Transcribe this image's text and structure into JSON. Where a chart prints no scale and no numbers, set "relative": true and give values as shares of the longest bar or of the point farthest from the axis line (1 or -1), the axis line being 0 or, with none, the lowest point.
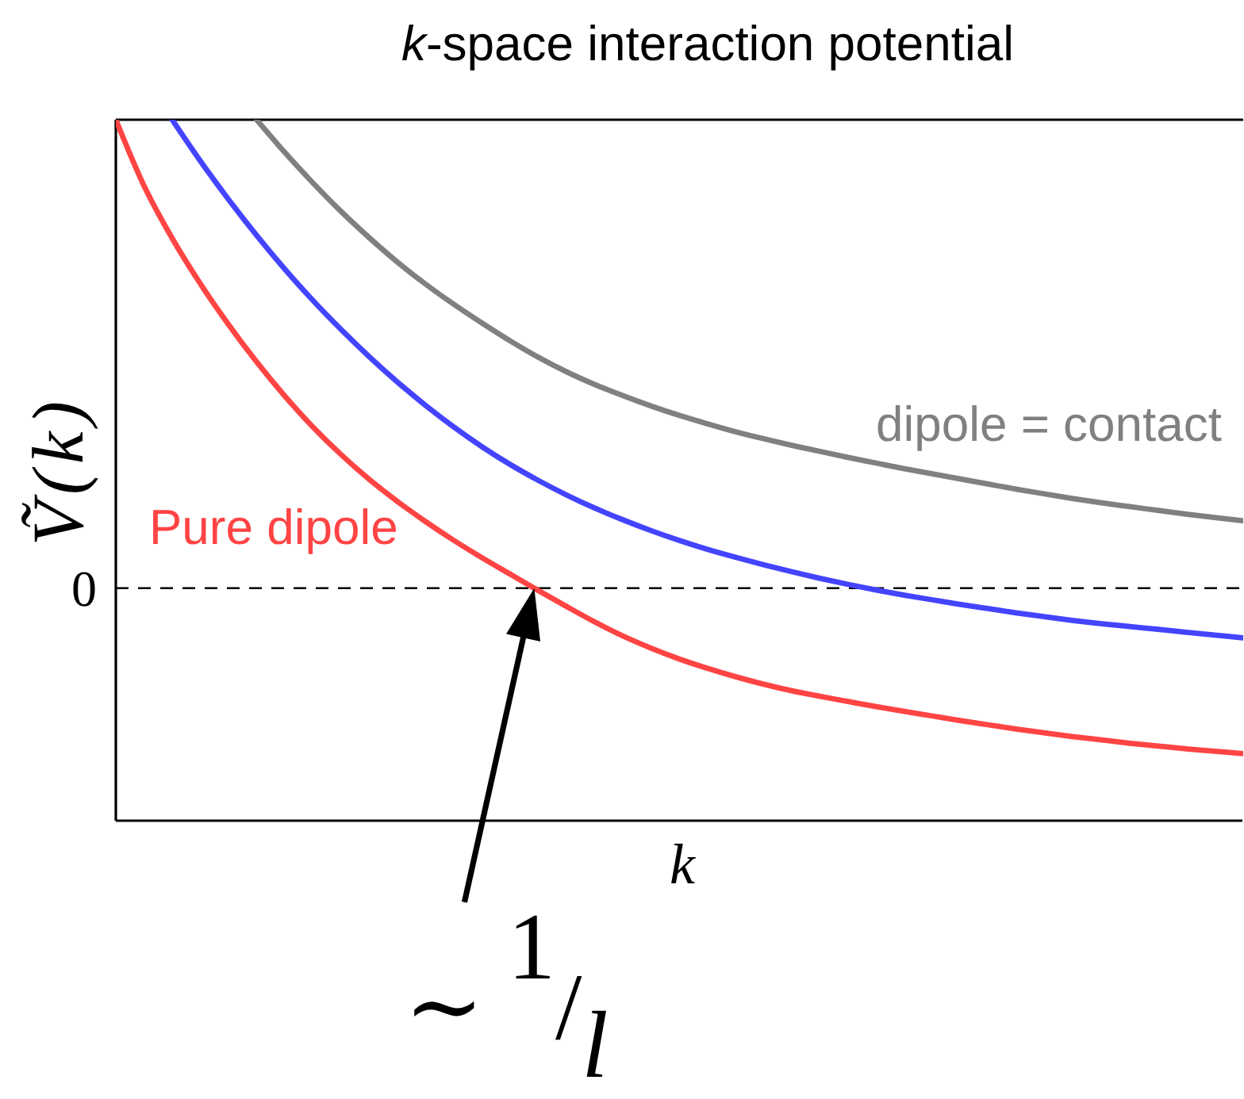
{
  "chart_data": {
    "type": "line",
    "title": "k-space interaction potential",
    "xlabel": "k",
    "ylabel": "Ṽ(k)",
    "relative": true,
    "categories": [
      null,
      null,
      null,
      null,
      null,
      null,
      null,
      null,
      null,
      null,
      null,
      null,
      null,
      null,
      null,
      null,
      null,
      null,
      null,
      null,
      null,
      null,
      null,
      null,
      null,
      null,
      null,
      null,
      null,
      null,
      null,
      null,
      null,
      null,
      null,
      null,
      null,
      null,
      null,
      null,
      null
    ],
    "series": [
      {
        "name": "Pure dipole",
        "color": "#ff4444",
        "values": [
          1,
          0.859,
          0.747,
          0.65,
          0.563,
          0.483,
          0.41,
          0.344,
          0.285,
          0.232,
          0.185,
          0.142,
          0.102,
          0.065,
          0.03,
          -0.005,
          -0.039,
          -0.072,
          -0.102,
          -0.128,
          -0.151,
          -0.171,
          -0.189,
          -0.205,
          -0.219,
          -0.231,
          -0.242,
          -0.253,
          -0.263,
          -0.273,
          -0.283,
          -0.292,
          -0.301,
          -0.309,
          -0.317,
          -0.324,
          -0.331,
          -0.337,
          -0.343,
          -0.348,
          -0.353
        ]
      },
      {
        "color": "#4444ff",
        "values": [
          null,
          null,
          1,
          0.912,
          0.83,
          0.753,
          0.681,
          0.614,
          0.552,
          0.494,
          0.44,
          0.39,
          0.344,
          0.302,
          0.264,
          0.23,
          0.199,
          0.171,
          0.146,
          0.123,
          0.102,
          0.083,
          0.066,
          0.05,
          0.035,
          0.021,
          0.008,
          -0.004,
          -0.015,
          -0.025,
          -0.035,
          -0.044,
          -0.053,
          -0.061,
          -0.069,
          -0.076,
          -0.082,
          -0.088,
          -0.094,
          -0.1,
          -0.106
        ]
      },
      {
        "name": "dipole = contact",
        "color": "#808080",
        "values": [
          null,
          null,
          null,
          null,
          null,
          1,
          0.93,
          0.865,
          0.804,
          0.748,
          0.696,
          0.649,
          0.606,
          0.566,
          0.528,
          0.493,
          0.462,
          0.435,
          0.411,
          0.389,
          0.369,
          0.351,
          0.334,
          0.319,
          0.305,
          0.292,
          0.279,
          0.267,
          0.255,
          0.244,
          0.233,
          0.222,
          0.211,
          0.201,
          0.191,
          0.182,
          0.174,
          0.166,
          0.158,
          0.151,
          0.144
        ]
      }
    ],
    "ref_lines": [
      {
        "axis": "y",
        "value": 0,
        "label": "0",
        "line_style": "dashed",
        "color": "#000000"
      }
    ],
    "annotations": [
      "∼ $^{1}$/$_{l}$"
    ]
  }
}
